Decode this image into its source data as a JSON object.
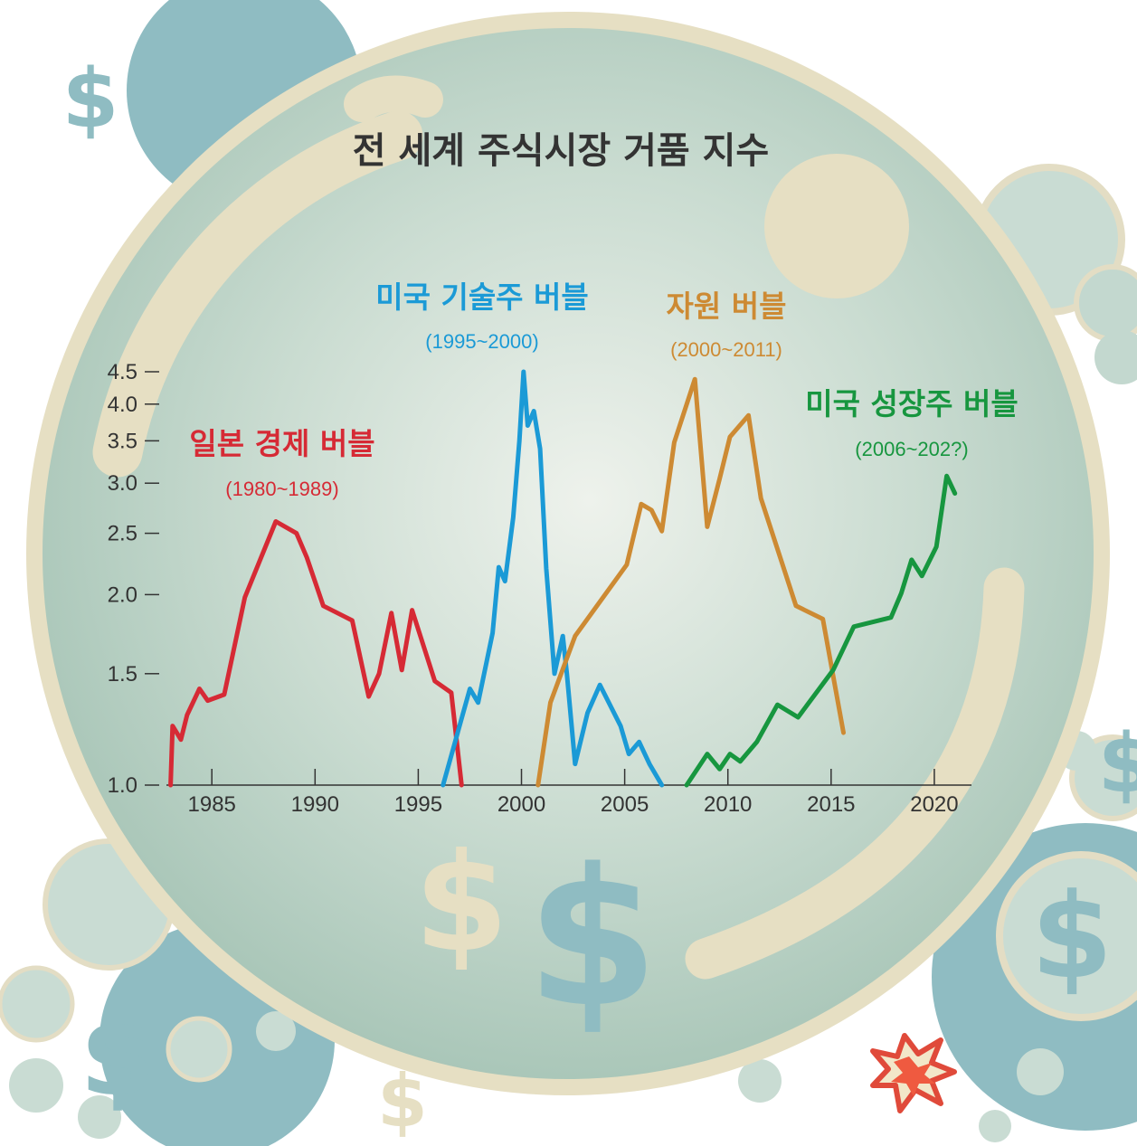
{
  "colors": {
    "japan": "#d62a35",
    "tech": "#1b9ad6",
    "resource": "#cd8a33",
    "growth": "#17963f",
    "bubble_fill": "#b9d2c6",
    "bubble_rim": "#e6dfc3",
    "teal": "#8fbcc2"
  },
  "icons": {
    "dollar": "dollar-sign-icon",
    "burst": "pop-burst-icon"
  },
  "chart_data": {
    "type": "line",
    "title": "전 세계 주식시장 거품 지수",
    "xlabel": "",
    "ylabel": "",
    "xlim": [
      1982.8,
      2021.8
    ],
    "ylim": [
      1.0,
      4.5
    ],
    "yscale": "log",
    "xticks": [
      "1985",
      "1990",
      "1995",
      "2000",
      "2005",
      "2010",
      "2015",
      "2020"
    ],
    "yticks": [
      "1.0",
      "1.5",
      "2.0",
      "2.5",
      "3.0",
      "3.5",
      "4.0",
      "4.5"
    ],
    "grid": false,
    "series": [
      {
        "name": "일본 경제 버블",
        "period": "(1980~1989)",
        "color": "#d62a35",
        "x": [
          1983.0,
          1983.1,
          1983.5,
          1983.8,
          1984.4,
          1984.8,
          1985.6,
          1986.6,
          1988.1,
          1989.1,
          1989.6,
          1990.4,
          1991.8,
          1992.6,
          1993.1,
          1993.7,
          1994.2,
          1994.7,
          1995.8,
          1996.6,
          1997.1
        ],
        "y": [
          1.0,
          1.24,
          1.18,
          1.29,
          1.42,
          1.36,
          1.39,
          1.98,
          2.61,
          2.5,
          2.29,
          1.92,
          1.82,
          1.38,
          1.5,
          1.87,
          1.52,
          1.89,
          1.46,
          1.4,
          1.0
        ]
      },
      {
        "name": "미국 기술주 버블",
        "period": "(1995~2000)",
        "color": "#1b9ad6",
        "x": [
          1996.2,
          1997.5,
          1997.9,
          1998.6,
          1998.9,
          1999.2,
          1999.6,
          1999.9,
          2000.1,
          2000.3,
          2000.6,
          2000.9,
          2001.2,
          2001.6,
          2002.0,
          2002.2,
          2002.6,
          2003.2,
          2003.8,
          2004.8,
          2005.2,
          2005.7,
          2006.2,
          2006.8
        ],
        "y": [
          1.0,
          1.42,
          1.35,
          1.74,
          2.21,
          2.1,
          2.65,
          3.5,
          4.5,
          3.7,
          3.9,
          3.4,
          2.2,
          1.5,
          1.72,
          1.5,
          1.08,
          1.3,
          1.44,
          1.24,
          1.12,
          1.17,
          1.08,
          1.0
        ]
      },
      {
        "name": "자원 버블",
        "period": "(2000~2011)",
        "color": "#cd8a33",
        "x": [
          2000.8,
          2001.4,
          2002.6,
          2005.1,
          2005.8,
          2006.3,
          2006.8,
          2007.4,
          2008.4,
          2009.0,
          2009.6,
          2010.1,
          2011.0,
          2011.6,
          2013.3,
          2014.6,
          2015.6
        ],
        "y": [
          1.0,
          1.35,
          1.72,
          2.23,
          2.78,
          2.72,
          2.52,
          3.48,
          4.38,
          2.56,
          3.05,
          3.55,
          3.84,
          2.84,
          1.92,
          1.83,
          1.21
        ]
      },
      {
        "name": "미국 성장주 버블",
        "period": "(2006~202?)",
        "color": "#17963f",
        "x": [
          2008.0,
          2009.0,
          2009.6,
          2010.1,
          2010.6,
          2011.4,
          2012.4,
          2013.4,
          2015.1,
          2016.1,
          2017.9,
          2018.4,
          2018.9,
          2019.4,
          2020.1,
          2020.6,
          2021.0
        ],
        "y": [
          1.0,
          1.12,
          1.06,
          1.12,
          1.09,
          1.17,
          1.34,
          1.28,
          1.52,
          1.78,
          1.84,
          2.01,
          2.27,
          2.14,
          2.38,
          3.08,
          2.89
        ]
      }
    ]
  }
}
